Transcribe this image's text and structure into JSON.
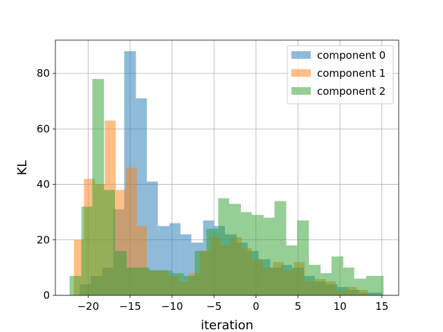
{
  "chart_data": {
    "type": "histogram",
    "title": "",
    "xlabel": "iteration",
    "ylabel": "KL",
    "xlim": [
      -23.9,
      17.0
    ],
    "ylim": [
      0,
      92
    ],
    "xticks": [
      -20,
      -15,
      -10,
      -5,
      0,
      5,
      10,
      15
    ],
    "yticks": [
      0,
      20,
      40,
      60,
      80
    ],
    "grid": true,
    "legend_position": "top-right",
    "series": [
      {
        "name": "component 0",
        "color": "#1f77b4",
        "alpha": 0.5,
        "bins": [
          [
            -21,
            -19.7,
            4
          ],
          [
            -19.7,
            -18.3,
            7
          ],
          [
            -18.3,
            -17,
            10
          ],
          [
            -17,
            -15.7,
            31
          ],
          [
            -15.7,
            -14.3,
            88
          ],
          [
            -14.3,
            -13,
            71
          ],
          [
            -13,
            -11.7,
            41
          ],
          [
            -11.7,
            -10.3,
            25
          ],
          [
            -10.3,
            -9,
            26
          ],
          [
            -9,
            -7.7,
            22
          ],
          [
            -7.7,
            -6.3,
            19
          ],
          [
            -6.3,
            -5,
            27
          ],
          [
            -5,
            -3.7,
            25
          ],
          [
            -3.7,
            -2.3,
            22
          ],
          [
            -2.3,
            -1,
            19
          ],
          [
            -1,
            0.3,
            16
          ],
          [
            0.3,
            1.7,
            13
          ],
          [
            1.7,
            3,
            10
          ],
          [
            3,
            4.3,
            11
          ],
          [
            4.3,
            5.7,
            10
          ],
          [
            5.7,
            7,
            7
          ],
          [
            7,
            8.3,
            5
          ],
          [
            8.3,
            9.7,
            4
          ],
          [
            9.7,
            11,
            3
          ],
          [
            11,
            12.3,
            2
          ],
          [
            12.3,
            13.7,
            1
          ],
          [
            13.7,
            15,
            1
          ]
        ]
      },
      {
        "name": "component 1",
        "color": "#ff7f0e",
        "alpha": 0.5,
        "bins": [
          [
            -21.7,
            -20.5,
            20
          ],
          [
            -20.5,
            -19.2,
            42
          ],
          [
            -19.2,
            -18,
            40
          ],
          [
            -18,
            -16.7,
            63
          ],
          [
            -16.7,
            -15.5,
            38
          ],
          [
            -15.5,
            -14.2,
            46
          ],
          [
            -14.2,
            -13,
            25
          ],
          [
            -13,
            -11.7,
            9
          ],
          [
            -11.7,
            -10.5,
            9
          ],
          [
            -10.5,
            -9.2,
            7
          ],
          [
            -9.2,
            -8,
            5
          ],
          [
            -8,
            -6.7,
            8
          ],
          [
            -6.7,
            -5.5,
            16
          ],
          [
            -5.5,
            -4.2,
            21
          ],
          [
            -4.2,
            -3,
            18
          ],
          [
            -3,
            -1.7,
            21
          ],
          [
            -1.7,
            -0.5,
            17
          ],
          [
            -0.5,
            0.8,
            13
          ],
          [
            0.8,
            2,
            10
          ],
          [
            2,
            3.3,
            12
          ],
          [
            3.3,
            4.5,
            9
          ],
          [
            4.5,
            5.8,
            12
          ],
          [
            5.8,
            7,
            5
          ],
          [
            7,
            8.3,
            6
          ],
          [
            8.3,
            9.5,
            5
          ],
          [
            9.5,
            10.8,
            2
          ],
          [
            10.8,
            12,
            3
          ],
          [
            12,
            13.3,
            2
          ]
        ]
      },
      {
        "name": "component 2",
        "color": "#2ca02c",
        "alpha": 0.5,
        "bins": [
          [
            -22.2,
            -20.8,
            7
          ],
          [
            -20.8,
            -19.5,
            32
          ],
          [
            -19.5,
            -18.1,
            78
          ],
          [
            -18.1,
            -16.8,
            38
          ],
          [
            -16.8,
            -15.4,
            16
          ],
          [
            -15.4,
            -14,
            10
          ],
          [
            -14,
            -12.7,
            10
          ],
          [
            -12.7,
            -11.3,
            9
          ],
          [
            -11.3,
            -10,
            9
          ],
          [
            -10,
            -8.6,
            8
          ],
          [
            -8.6,
            -7.3,
            7
          ],
          [
            -7.3,
            -5.9,
            16
          ],
          [
            -5.9,
            -4.5,
            24
          ],
          [
            -4.5,
            -3.2,
            35
          ],
          [
            -3.2,
            -1.8,
            33
          ],
          [
            -1.8,
            -0.5,
            30
          ],
          [
            -0.5,
            0.9,
            29
          ],
          [
            0.9,
            2.2,
            28
          ],
          [
            2.2,
            3.6,
            34
          ],
          [
            3.6,
            4.9,
            18
          ],
          [
            4.9,
            6.3,
            27
          ],
          [
            6.3,
            7.7,
            11
          ],
          [
            7.7,
            9,
            8
          ],
          [
            9,
            10.4,
            14
          ],
          [
            10.4,
            11.7,
            10
          ],
          [
            11.7,
            13.1,
            6
          ],
          [
            13.1,
            14.4,
            7
          ],
          [
            14.4,
            15.2,
            7
          ]
        ]
      }
    ]
  }
}
